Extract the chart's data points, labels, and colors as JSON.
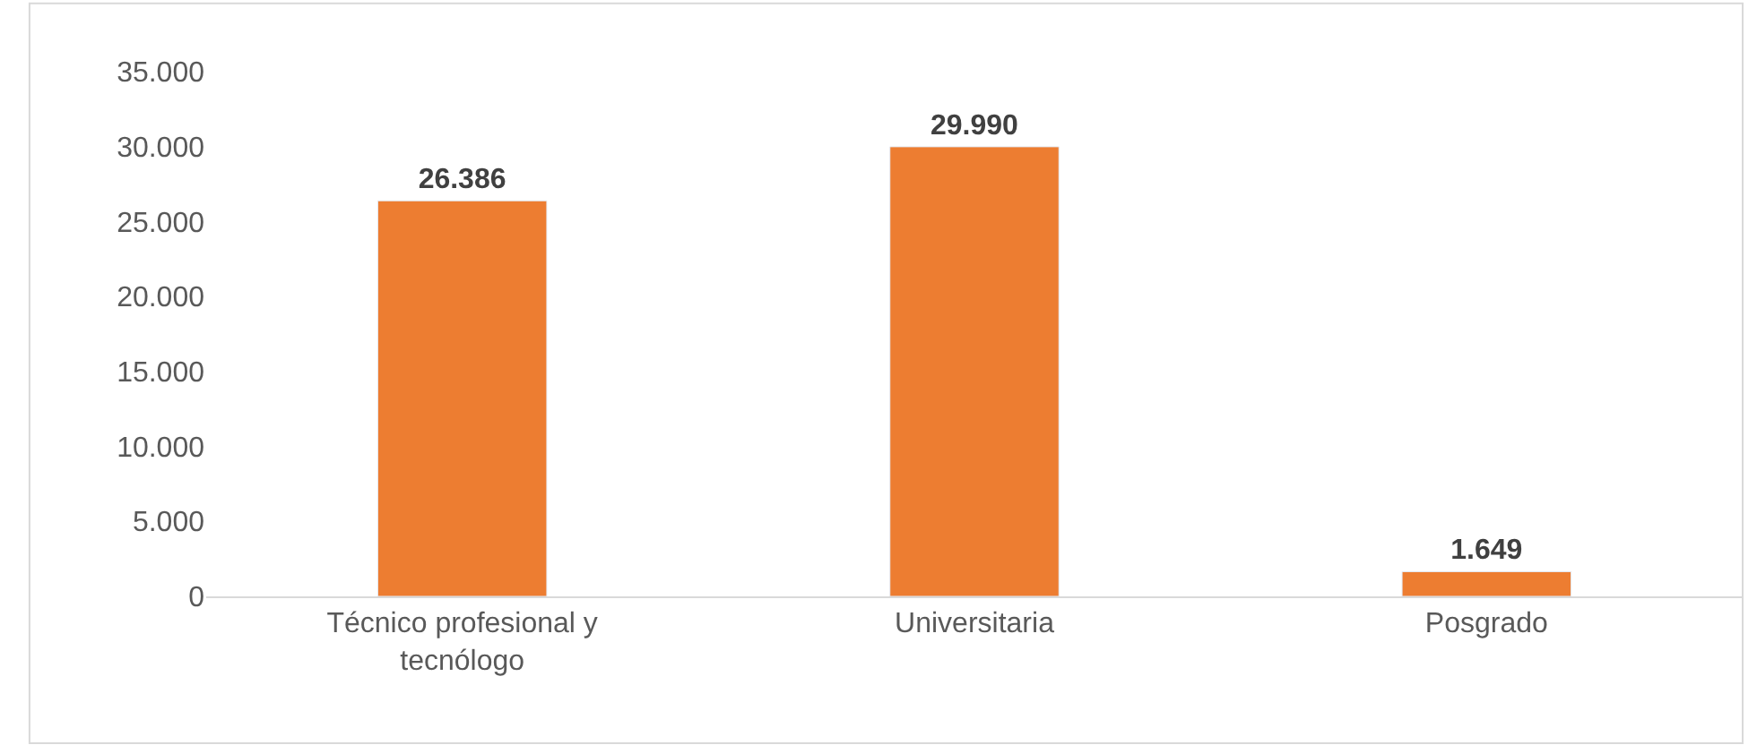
{
  "chart_data": {
    "type": "bar",
    "categories": [
      "Técnico profesional y tecnólogo",
      "Universitaria",
      "Posgrado"
    ],
    "values": [
      26386,
      29990,
      1649
    ],
    "value_labels": [
      "26.386",
      "29.990",
      "1.649"
    ],
    "color": "#ed7d31",
    "ylim": [
      0,
      35000
    ],
    "yticks": [
      {
        "value": 0,
        "label": "0"
      },
      {
        "value": 5000,
        "label": "5.000"
      },
      {
        "value": 10000,
        "label": "10.000"
      },
      {
        "value": 15000,
        "label": "15.000"
      },
      {
        "value": 20000,
        "label": "20.000"
      },
      {
        "value": 25000,
        "label": "25.000"
      },
      {
        "value": 30000,
        "label": "30.000"
      },
      {
        "value": 35000,
        "label": "35.000"
      }
    ],
    "grid": false,
    "legend": false
  }
}
